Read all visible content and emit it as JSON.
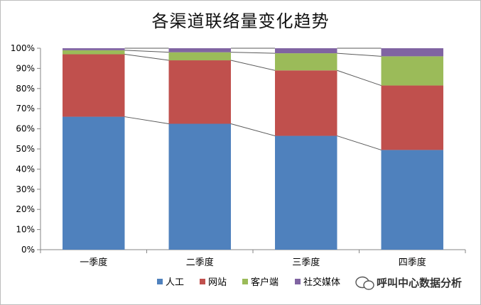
{
  "chart_data": {
    "type": "bar",
    "stacked": true,
    "title": "各渠道联络量变化趋势",
    "categories": [
      "一季度",
      "二季度",
      "三季度",
      "四季度"
    ],
    "series": [
      {
        "name": "人工",
        "color": "#4f81bd",
        "values": [
          66,
          62.5,
          56.5,
          49.5
        ]
      },
      {
        "name": "网站",
        "color": "#c0504d",
        "values": [
          31,
          31.5,
          32.5,
          32
        ]
      },
      {
        "name": "客户端",
        "color": "#9bbb59",
        "values": [
          2,
          4,
          8.5,
          14.5
        ]
      },
      {
        "name": "社交媒体",
        "color": "#8064a2",
        "values": [
          1,
          2,
          2.5,
          4
        ]
      }
    ],
    "ylim": [
      0,
      100
    ],
    "yticks": [
      "0%",
      "10%",
      "20%",
      "30%",
      "40%",
      "50%",
      "60%",
      "70%",
      "80%",
      "90%",
      "100%"
    ],
    "connector_lines": true,
    "legend_position": "bottom"
  },
  "watermark": "呼叫中心数据分析"
}
